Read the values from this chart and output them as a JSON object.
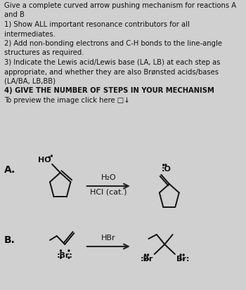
{
  "bg_color": "#d0d0d0",
  "text_color": "#111111",
  "title_lines": [
    "Give a complete curved arrow pushing mechanism for reactions A",
    "and B",
    "1) Show ALL important resonance contributors for all",
    "intermediates.",
    "2) Add non-bonding electrons and C-H bonds to the line-angle",
    "structures as required.",
    "3) Indicate the Lewis acid/Lewis base (LA, LB) at each step as",
    "appropriate, and whether they are also Brønsted acids/bases",
    "(LA/BA, LB,BB)",
    "4) GIVE THE NUMBER OF STEPS IN YOUR MECHANISM",
    "To preview the image click here □↓"
  ],
  "label_A": "A.",
  "label_B": "B.",
  "reagent_A_top": "H₂O",
  "reagent_A_bot": "HCl (cat.)",
  "reagent_B": "HBr",
  "arrow_color": "#222222",
  "struct_color": "#111111",
  "fontsize_body": 7.2,
  "fontsize_label": 10,
  "fontsize_reagent": 8,
  "fontsize_struct": 8,
  "lw": 1.4
}
